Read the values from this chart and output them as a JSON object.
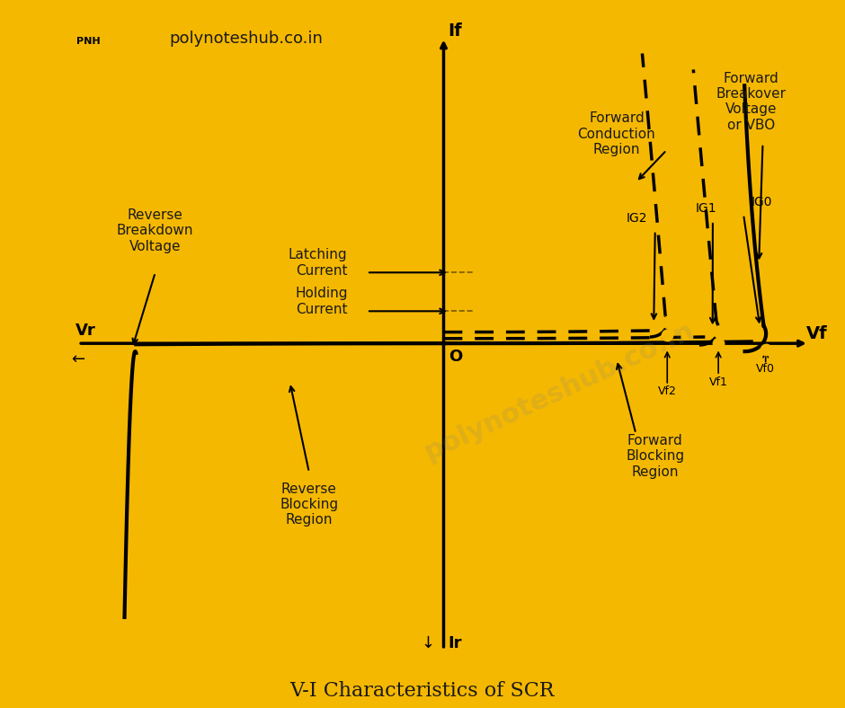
{
  "title": "V-I Characteristics of SCR",
  "background_color": "#ffffff",
  "border_color": "#F5B800",
  "border_width": 12,
  "text_color": "#1a1a1a",
  "curve_color": "#000000",
  "dot_color": "#F5B800",
  "watermark": "polynoteshub.co.in",
  "header_text": "polynoteshub.co.in",
  "annotations": {
    "If": "If",
    "Ir": "Ir",
    "Vf": "Vf",
    "Vr": "Vr",
    "O": "O",
    "latching_current": "Latching\nCurrent",
    "holding_current": "Holding\nCurrent",
    "forward_conduction": "Forward\nConduction\nRegion",
    "forward_blocking": "Forward\nBlocking\nRegion",
    "reverse_blocking": "Reverse\nBlocking\nRegion",
    "reverse_breakdown": "Reverse\nBreakdown\nVoltage",
    "forward_breakover": "Forward\nBreakover\nVoltage\nor VBO",
    "IG0": "IG0",
    "IG1": "IG1",
    "IG2": "IG2",
    "Vf0": "Vf0",
    "Vf1": "Vf1",
    "Vf2": "Vf2"
  }
}
